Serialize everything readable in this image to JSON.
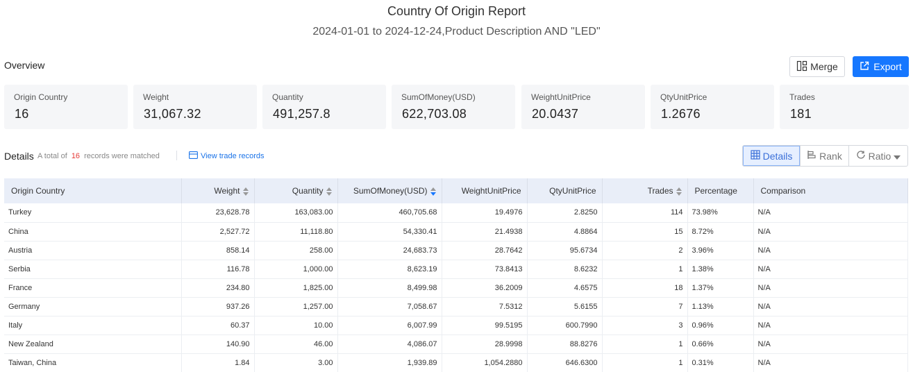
{
  "header": {
    "title": "Country Of Origin Report",
    "subtitle": "2024-01-01 to 2024-12-24,Product Description AND \"LED\""
  },
  "overview": {
    "label": "Overview",
    "merge_label": "Merge",
    "export_label": "Export",
    "cards": [
      {
        "label": "Origin Country",
        "value": "16"
      },
      {
        "label": "Weight",
        "value": "31,067.32"
      },
      {
        "label": "Quantity",
        "value": "491,257.8"
      },
      {
        "label": "SumOfMoney(USD)",
        "value": "622,703.08"
      },
      {
        "label": "WeightUnitPrice",
        "value": "20.0437"
      },
      {
        "label": "QtyUnitPrice",
        "value": "1.2676"
      },
      {
        "label": "Trades",
        "value": "181"
      }
    ]
  },
  "details": {
    "label": "Details",
    "total_prefix": "A total of",
    "total_count": "16",
    "total_suffix": "records were matched",
    "view_link": "View trade records",
    "view_details": "Details",
    "view_rank": "Rank",
    "view_ratio": "Ratio"
  },
  "table": {
    "columns": [
      "Origin Country",
      "Weight",
      "Quantity",
      "SumOfMoney(USD)",
      "WeightUnitPrice",
      "QtyUnitPrice",
      "Trades",
      "Percentage",
      "Comparison"
    ],
    "rows": [
      [
        "Turkey",
        "23,628.78",
        "163,083.00",
        "460,705.68",
        "19.4976",
        "2.8250",
        "114",
        "73.98%",
        "N/A"
      ],
      [
        "China",
        "2,527.72",
        "11,118.80",
        "54,330.41",
        "21.4938",
        "4.8864",
        "15",
        "8.72%",
        "N/A"
      ],
      [
        "Austria",
        "858.14",
        "258.00",
        "24,683.73",
        "28.7642",
        "95.6734",
        "2",
        "3.96%",
        "N/A"
      ],
      [
        "Serbia",
        "116.78",
        "1,000.00",
        "8,623.19",
        "73.8413",
        "8.6232",
        "1",
        "1.38%",
        "N/A"
      ],
      [
        "France",
        "234.80",
        "1,825.00",
        "8,499.98",
        "36.2009",
        "4.6575",
        "18",
        "1.37%",
        "N/A"
      ],
      [
        "Germany",
        "937.26",
        "1,257.00",
        "7,058.67",
        "7.5312",
        "5.6155",
        "7",
        "1.13%",
        "N/A"
      ],
      [
        "Italy",
        "60.37",
        "10.00",
        "6,007.99",
        "99.5195",
        "600.7990",
        "3",
        "0.96%",
        "N/A"
      ],
      [
        "New Zealand",
        "140.90",
        "46.00",
        "4,086.07",
        "28.9998",
        "88.8276",
        "1",
        "0.66%",
        "N/A"
      ],
      [
        "Taiwan, China",
        "1.84",
        "3.00",
        "1,939.89",
        "1,054.2880",
        "646.6300",
        "1",
        "0.31%",
        "N/A"
      ]
    ]
  },
  "icons": {
    "merge": "merge-icon",
    "export": "export-icon",
    "view": "table-link-icon",
    "details": "grid-icon",
    "rank": "bar-rank-icon",
    "ratio": "refresh-icon",
    "sort": "sort-icon"
  },
  "colors": {
    "accent": "#1677ff",
    "count_highlight": "#e53935",
    "header_bg": "#e9eef8",
    "card_bg": "#f5f6f8"
  }
}
